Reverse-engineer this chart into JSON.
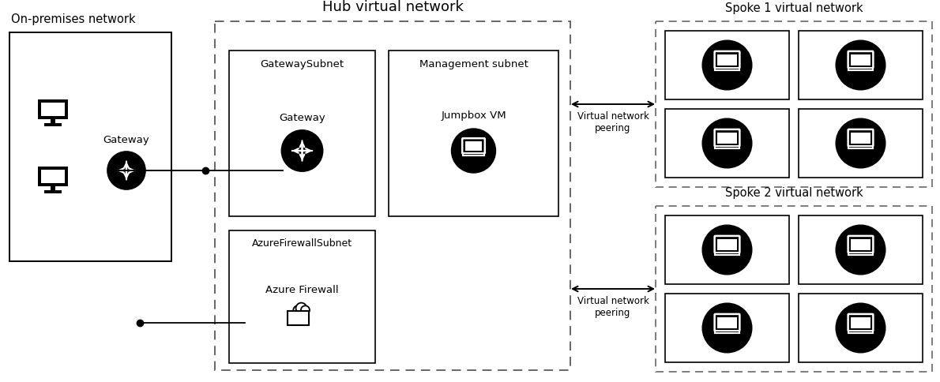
{
  "title": "Hub virtual network",
  "on_premises_label": "On-premises network",
  "spoke1_label": "Spoke 1 virtual network",
  "spoke2_label": "Spoke 2 virtual network",
  "gateway_subnet_label": "GatewaySubnet",
  "management_subnet_label": "Management subnet",
  "azure_firewall_subnet_label": "AzureFirewallSubnet",
  "gateway_label": "Gateway",
  "jumpbox_label": "Jumpbox VM",
  "azure_firewall_label": "Azure Firewall",
  "vnet_peering_label": "Virtual network\npeering",
  "bg_color": "#ffffff"
}
